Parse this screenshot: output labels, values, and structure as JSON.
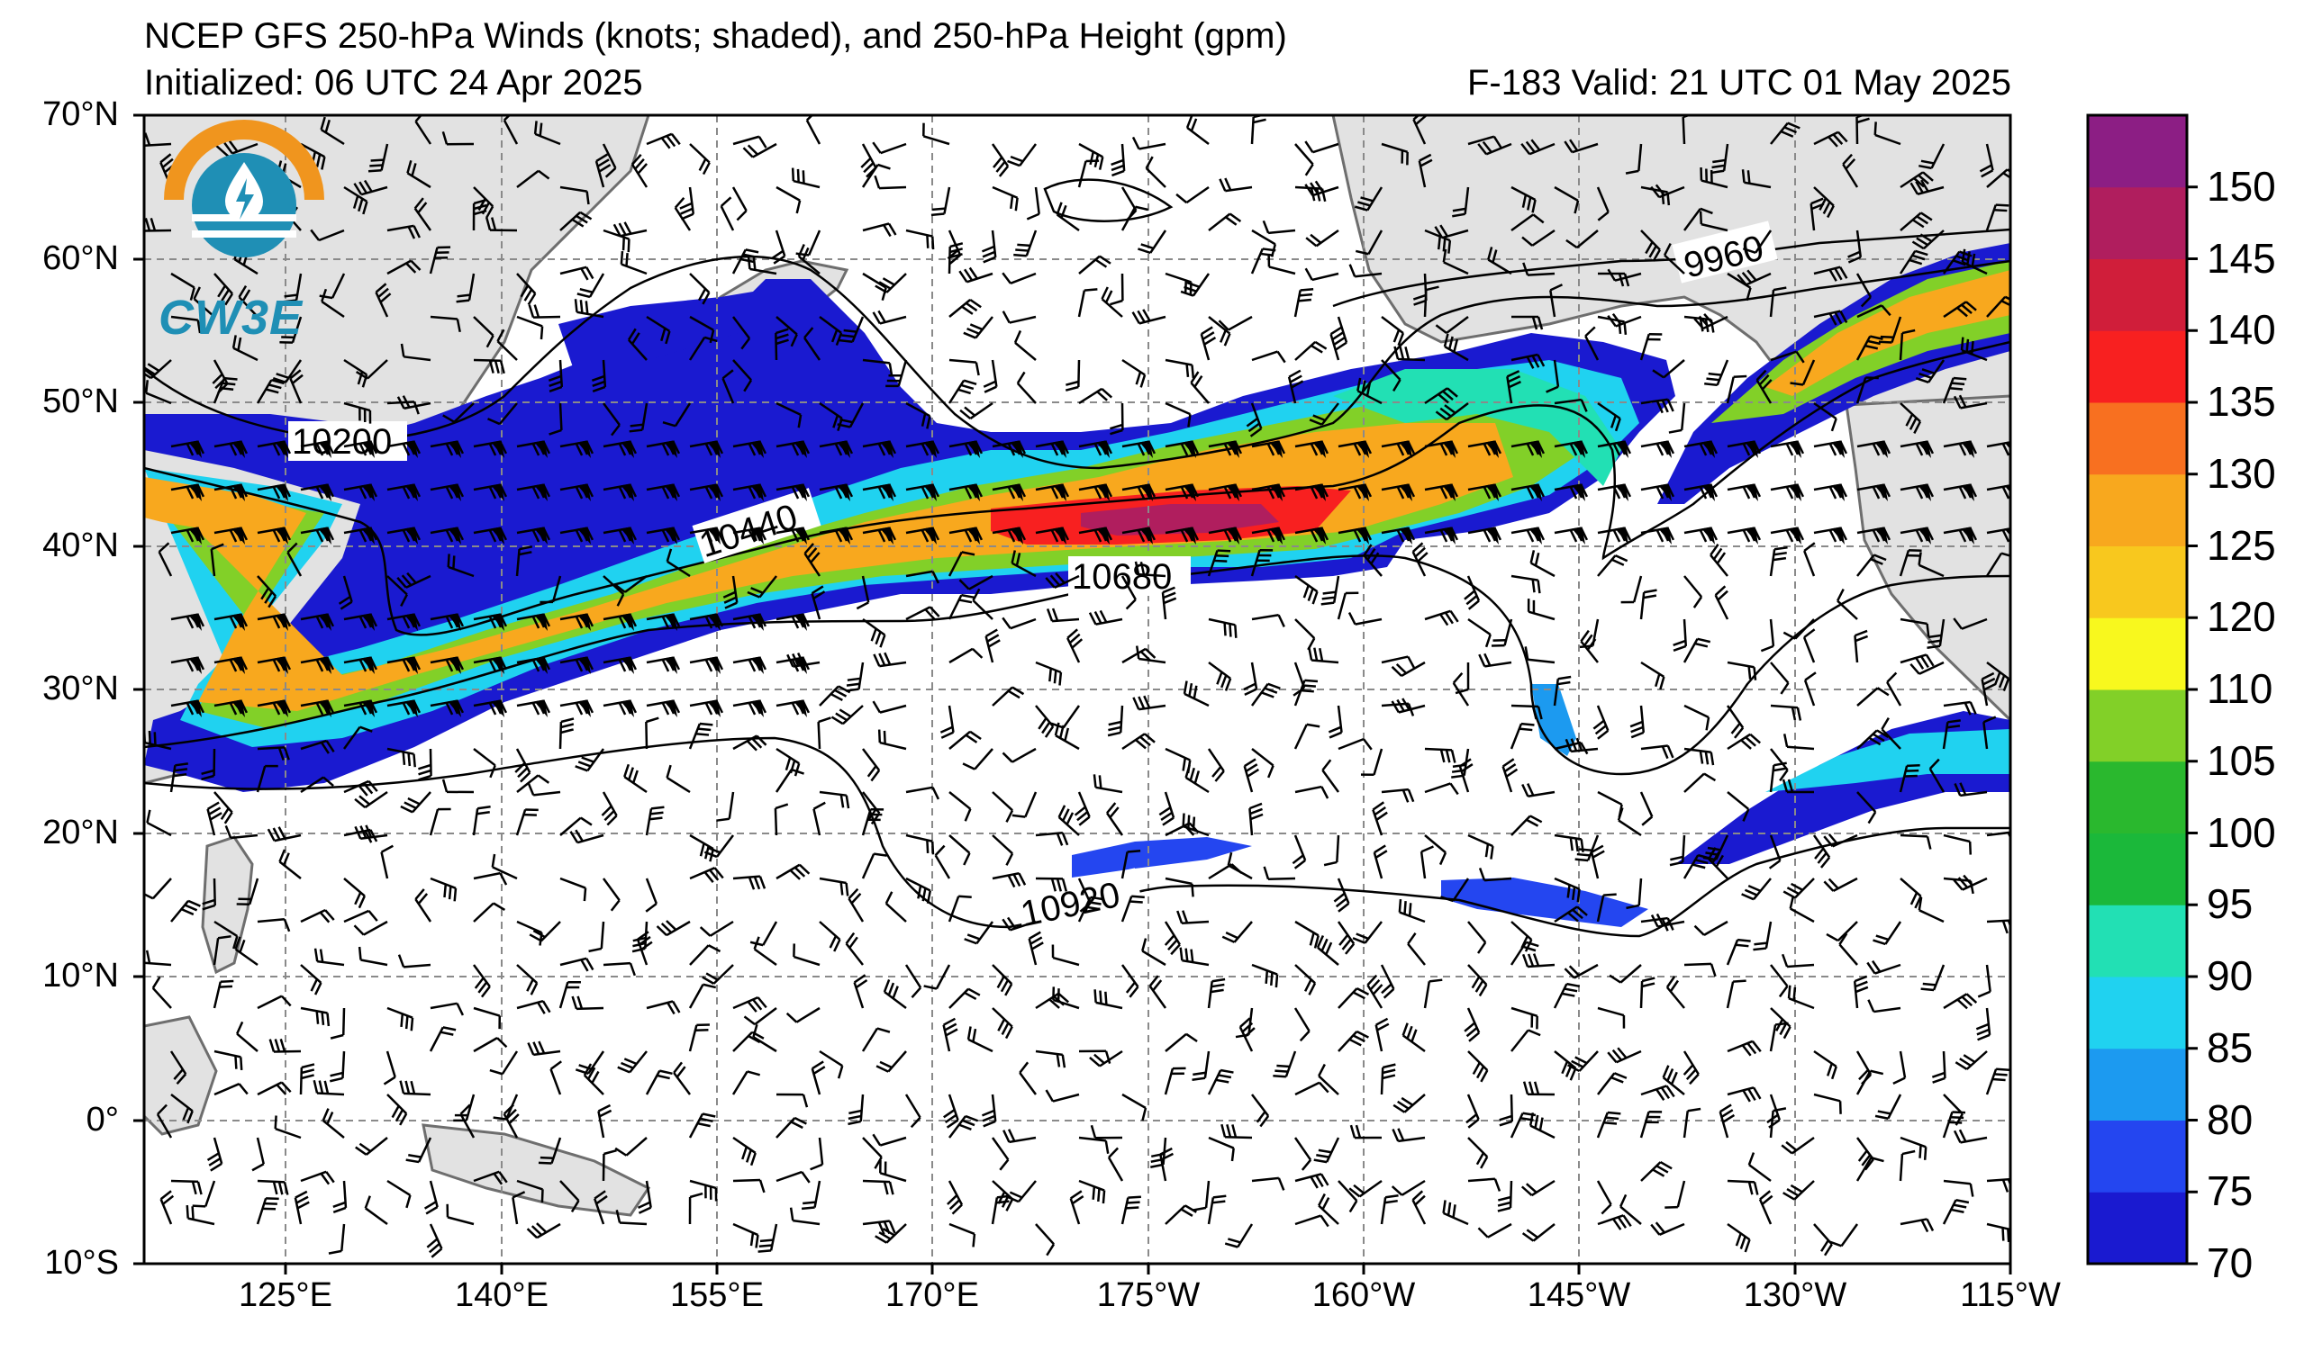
{
  "header": {
    "title": "NCEP GFS 250-hPa Winds (knots; shaded), and 250-hPa Height (gpm)",
    "initialized": "Initialized: 06 UTC 24 Apr 2025",
    "valid": "F-183  Valid: 21 UTC 01 May 2025"
  },
  "logo": {
    "text": "CW3E",
    "colors": [
      "#f0951e",
      "#1f8fb5"
    ]
  },
  "axes": {
    "lat_ticks": [
      "70°N",
      "60°N",
      "50°N",
      "40°N",
      "30°N",
      "20°N",
      "10°N",
      "0°",
      "10°S"
    ],
    "lon_ticks": [
      "125°E",
      "140°E",
      "155°E",
      "170°E",
      "175°W",
      "160°W",
      "145°W",
      "130°W",
      "115°W"
    ]
  },
  "colorbar": {
    "ticks": [
      "70",
      "75",
      "80",
      "85",
      "90",
      "95",
      "100",
      "105",
      "110",
      "120",
      "125",
      "130",
      "135",
      "140",
      "145",
      "150"
    ],
    "colors": [
      "#1a1ad0",
      "#2446f0",
      "#1c9af0",
      "#20d2f0",
      "#22e0b4",
      "#1bb83a",
      "#2ab82e",
      "#82d028",
      "#f8f81e",
      "#f8c81e",
      "#f8a81e",
      "#f87020",
      "#f82020",
      "#d01e3a",
      "#b01e5e",
      "#8c1e84"
    ]
  },
  "contour_labels": [
    "9960",
    "10200",
    "10440",
    "10680",
    "10920"
  ]
}
